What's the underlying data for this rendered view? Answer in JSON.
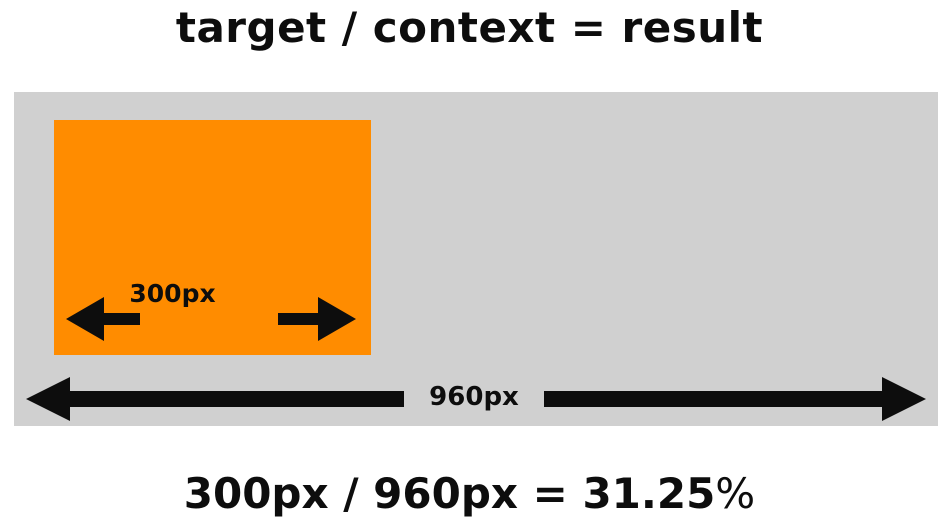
{
  "title": "target / context = result",
  "diagram": {
    "target_label": "300px",
    "context_label": "960px",
    "colors": {
      "target": "#ff8c00",
      "context": "#d0d0d0",
      "arrows": "#0d0d0d"
    }
  },
  "formula": {
    "expression": "300px / 960px = 31.25",
    "percent_sign": "%"
  }
}
